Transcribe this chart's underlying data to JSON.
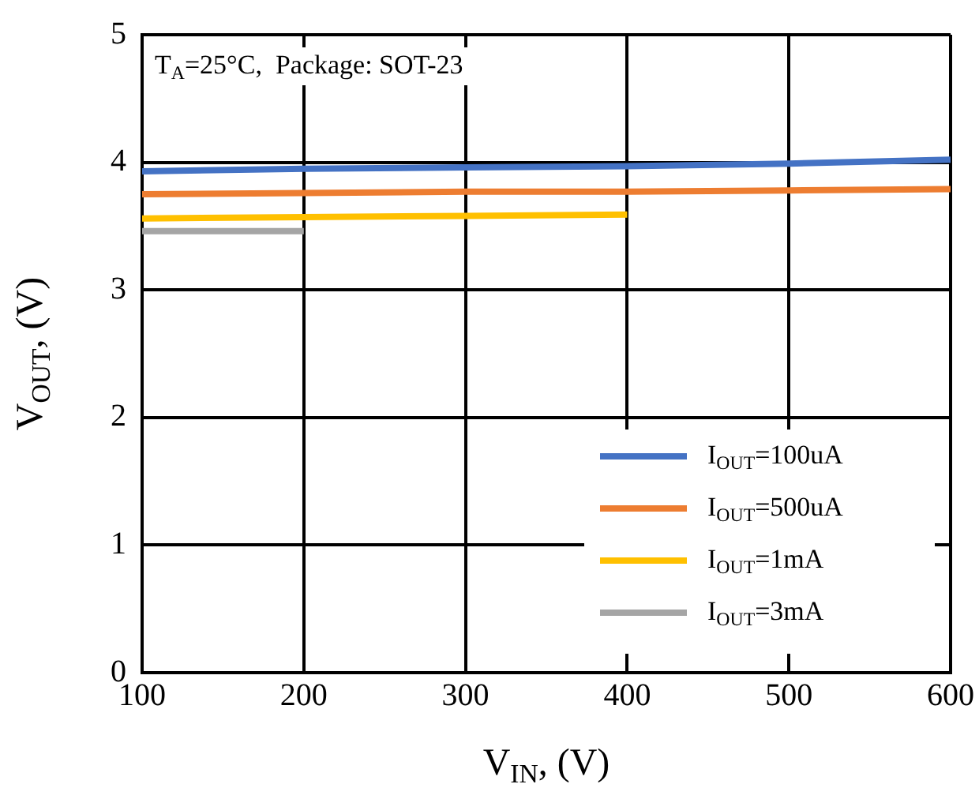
{
  "chart_data": {
    "type": "line",
    "xlabel": "V$_{IN}$, (V)",
    "ylabel": "V$_{OUT}$, (V)",
    "annotations": [
      "T$_{A}$=25°C,  Package: SOT-23"
    ],
    "x": [
      100,
      200,
      300,
      400,
      500,
      600
    ],
    "series": [
      {
        "name": "I$_{OUT}$=100uA",
        "color": "#4472c4",
        "values": [
          3.93,
          3.95,
          3.96,
          3.97,
          3.99,
          4.02
        ]
      },
      {
        "name": "I$_{OUT}$=500uA",
        "color": "#ed7d31",
        "values": [
          3.75,
          3.76,
          3.77,
          3.77,
          3.78,
          3.79
        ]
      },
      {
        "name": "I$_{OUT}$=1mA",
        "color": "#ffc000",
        "values": [
          3.56,
          3.57,
          3.58,
          3.59,
          null,
          null
        ]
      },
      {
        "name": "I$_{OUT}$=3mA",
        "color": "#a5a5a5",
        "values": [
          3.46,
          3.46,
          null,
          null,
          null,
          null
        ]
      }
    ],
    "xlim": [
      100,
      600
    ],
    "xticks": [
      100,
      200,
      300,
      400,
      500,
      600
    ],
    "ylim": [
      0,
      5
    ],
    "yticks": [
      0,
      1,
      2,
      3,
      4,
      5
    ],
    "grid": true,
    "legend": "bottom right",
    "marker": "none",
    "line_style": "solid"
  }
}
